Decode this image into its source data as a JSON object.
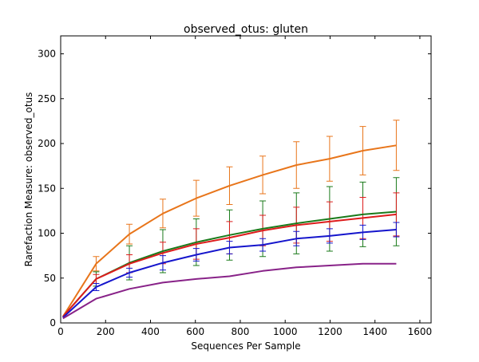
{
  "chart_data": {
    "type": "line",
    "title": "observed_otus: gluten",
    "xlabel": "Sequences Per Sample",
    "ylabel": "Rarefaction Measure: observed_otus",
    "xlim": [
      0,
      1650
    ],
    "ylim": [
      0,
      320
    ],
    "xticks": [
      0,
      200,
      400,
      600,
      800,
      1000,
      1200,
      1400,
      1600
    ],
    "yticks": [
      0,
      50,
      100,
      150,
      200,
      250,
      300
    ],
    "grid": false,
    "legend": "none",
    "x": [
      10,
      158,
      306,
      455,
      604,
      752,
      900,
      1050,
      1198,
      1346,
      1495
    ],
    "series": [
      {
        "color": "#e8751a",
        "values": [
          7,
          66,
          99,
          122,
          139,
          153,
          165,
          176,
          183,
          192,
          198
        ],
        "errors": [
          null,
          8,
          11,
          16,
          20,
          21,
          21,
          26,
          25,
          27,
          28
        ]
      },
      {
        "color": "#1a7a1a",
        "values": [
          7,
          49,
          67,
          80,
          90,
          98,
          105,
          111,
          116,
          121,
          124
        ],
        "errors": [
          null,
          8,
          19,
          24,
          26,
          28,
          31,
          34,
          36,
          36,
          38
        ]
      },
      {
        "color": "#dd1c1c",
        "values": [
          7,
          49,
          66,
          78,
          88,
          95,
          103,
          109,
          113,
          117,
          121
        ],
        "errors": [
          null,
          5,
          10,
          12,
          17,
          18,
          17,
          20,
          22,
          23,
          24
        ]
      },
      {
        "color": "#1515cc",
        "values": [
          6,
          40,
          56,
          67,
          76,
          84,
          87,
          94,
          97,
          101,
          104
        ],
        "errors": [
          null,
          4,
          5,
          8,
          7,
          7,
          7,
          8,
          8,
          8,
          8
        ]
      },
      {
        "color": "#882288",
        "values": [
          5,
          27,
          38,
          45,
          49,
          52,
          58,
          62,
          64,
          66,
          66
        ],
        "errors": [
          null,
          null,
          null,
          null,
          null,
          null,
          null,
          null,
          null,
          null,
          null
        ]
      }
    ]
  }
}
